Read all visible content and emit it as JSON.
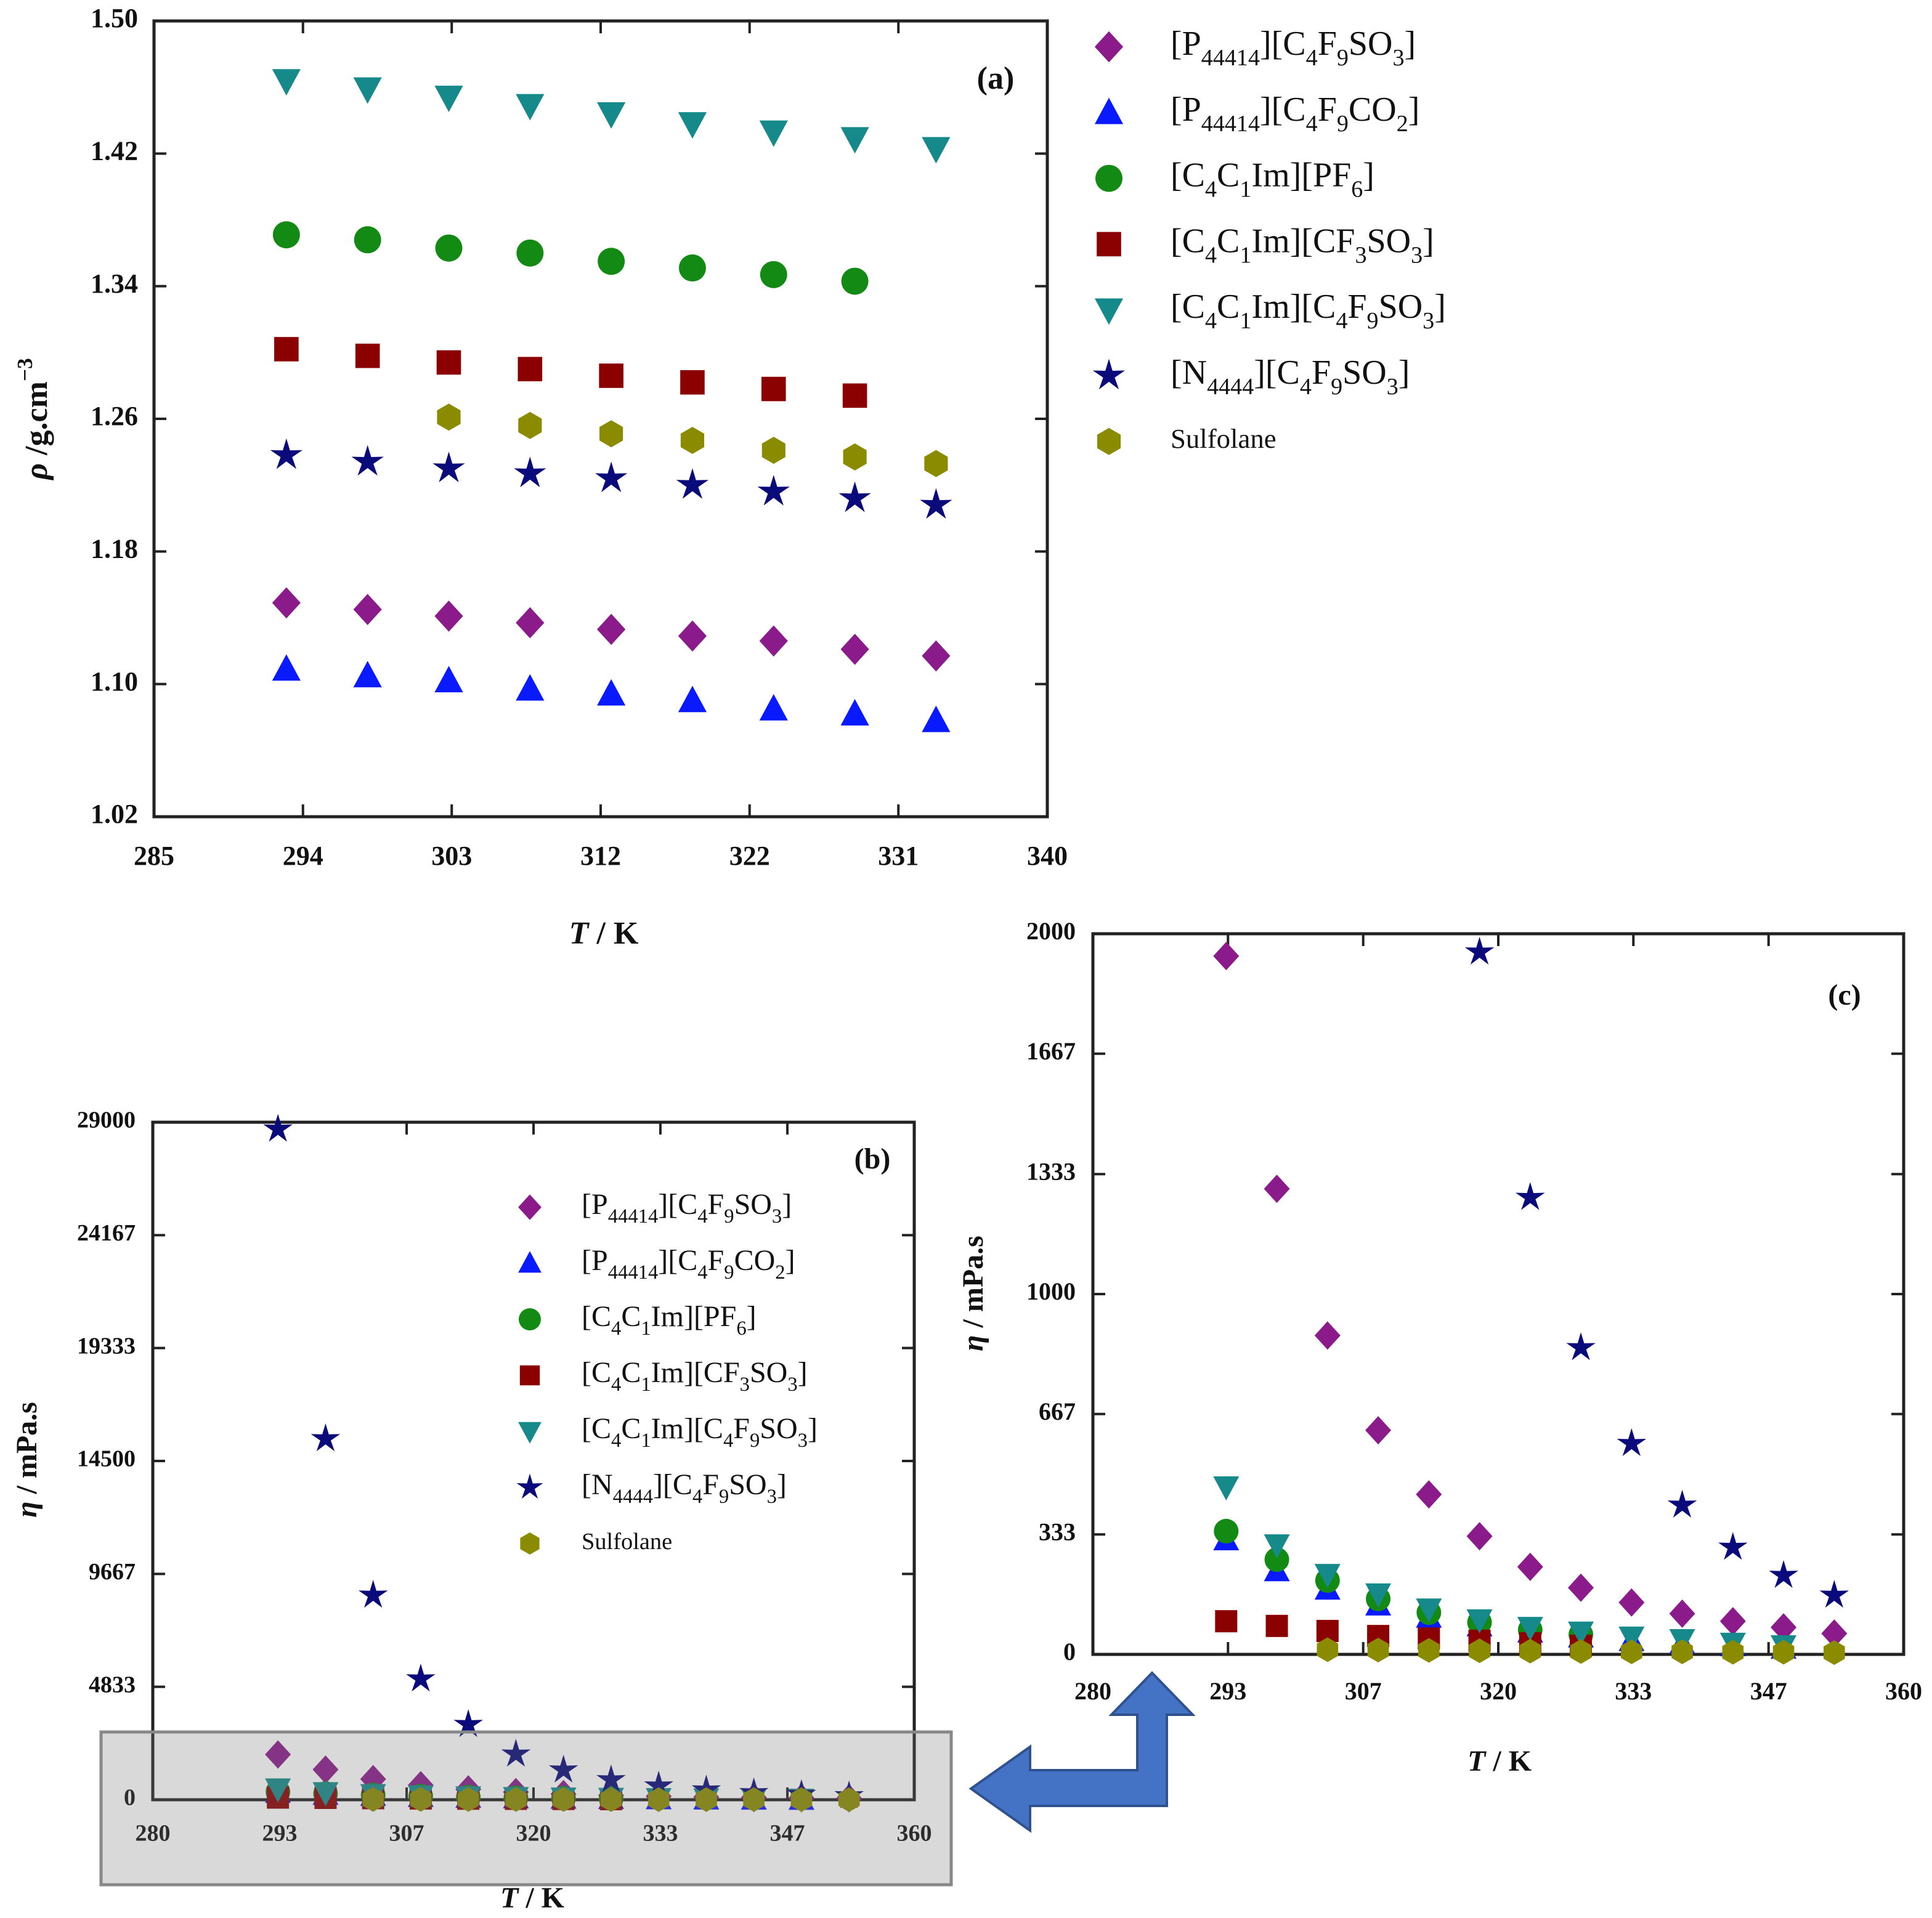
{
  "chart_data": [
    {
      "type": "scatter",
      "label": "(a)",
      "xlabel": "T / K",
      "ylabel": "ρ /g.cm−3",
      "x": [
        293.15,
        298.15,
        303.15,
        308.15,
        313.15,
        318.15,
        323.15,
        328.15,
        333.15
      ],
      "xlim": [
        285,
        340
      ],
      "xticks": [
        285,
        {
          "value": 294.17,
          "label": "294"
        },
        {
          "value": 303.33,
          "label": "303"
        },
        {
          "value": 312.5,
          "label": "312"
        },
        {
          "value": 321.67,
          "label": "322"
        },
        {
          "value": 330.83,
          "label": "331"
        },
        340
      ],
      "ylim": [
        1.02,
        1.5
      ],
      "yticks": [
        {
          "value": 1.02,
          "label": "1.02"
        },
        {
          "value": 1.1,
          "label": "1.10"
        },
        {
          "value": 1.18,
          "label": "1.18"
        },
        {
          "value": 1.26,
          "label": "1.26"
        },
        {
          "value": 1.34,
          "label": "1.34"
        },
        {
          "value": 1.42,
          "label": "1.42"
        },
        {
          "value": 1.5,
          "label": "1.50"
        }
      ],
      "legend": "outside right",
      "series": [
        {
          "name": "[P44414][C4F9SO3]",
          "color": "#8b1a8b",
          "marker": "diamond",
          "values": [
            1.149,
            1.145,
            1.141,
            1.137,
            1.133,
            1.129,
            1.126,
            1.121,
            1.117
          ]
        },
        {
          "name": "[P44414][C4F9CO2]",
          "color": "#0a1aff",
          "marker": "triangle",
          "values": [
            1.109,
            1.105,
            1.102,
            1.097,
            1.094,
            1.09,
            1.085,
            1.082,
            1.078
          ]
        },
        {
          "name": "[C4C1Im][PF6]",
          "color": "#138a13",
          "marker": "circle",
          "values": [
            1.371,
            1.368,
            1.363,
            1.36,
            1.355,
            1.351,
            1.347,
            1.343,
            null
          ]
        },
        {
          "name": "[C4C1Im][CF3SO3]",
          "color": "#8b0000",
          "marker": "square",
          "values": [
            1.302,
            1.298,
            1.294,
            1.29,
            1.286,
            1.282,
            1.278,
            1.274,
            null
          ]
        },
        {
          "name": "[C4C1Im][C4F9SO3]",
          "color": "#168a8a",
          "marker": "triangle-down",
          "values": [
            1.464,
            1.459,
            1.454,
            1.449,
            1.444,
            1.438,
            1.433,
            1.429,
            1.423
          ]
        },
        {
          "name": "[N4444][C4F9SO3]",
          "color": "#0a0a7a",
          "marker": "star",
          "values": [
            1.238,
            1.234,
            1.23,
            1.227,
            1.224,
            1.22,
            1.216,
            1.212,
            1.208
          ]
        },
        {
          "name": "Sulfolane",
          "color": "#8b8b00",
          "marker": "hexagon",
          "values": [
            null,
            null,
            1.261,
            1.256,
            1.251,
            1.247,
            1.241,
            1.237,
            1.233
          ]
        }
      ]
    },
    {
      "type": "scatter",
      "label": "(b)",
      "xlabel": "T / K",
      "ylabel": "η / mPa.s",
      "x": [
        293.15,
        298.15,
        303.15,
        308.15,
        313.15,
        318.15,
        323.15,
        328.15,
        333.15,
        338.15,
        343.15,
        348.15,
        353.15
      ],
      "xlim": [
        280,
        360
      ],
      "xticks": [
        280,
        {
          "value": 293.33,
          "label": "293"
        },
        {
          "value": 306.67,
          "label": "307"
        },
        320,
        {
          "value": 333.33,
          "label": "333"
        },
        {
          "value": 346.67,
          "label": "347"
        },
        360
      ],
      "ylim": [
        0,
        29000
      ],
      "yticks": [
        0,
        4833,
        9667,
        14500,
        19333,
        24167,
        29000
      ],
      "legend": "inside top right",
      "series": [
        {
          "name": "[P44414][C4F9SO3]",
          "color": "#8b1a8b",
          "marker": "diamond",
          "values": [
            1938,
            1292,
            885,
            622,
            444,
            328,
            243,
            185,
            144,
            113,
            92,
            75,
            58
          ]
        },
        {
          "name": "[P44414][C4F9CO2]",
          "color": "#0a1aff",
          "marker": "triangle",
          "values": [
            318,
            232,
            181,
            137,
            103,
            79,
            62,
            48,
            38,
            31,
            24,
            17,
            null
          ]
        },
        {
          "name": "[C4C1Im][PF6]",
          "color": "#138a13",
          "marker": "circle",
          "values": [
            342,
            263,
            205,
            154,
            116,
            89,
            68,
            55,
            null,
            null,
            null,
            null,
            null
          ]
        },
        {
          "name": "[C4C1Im][CF3SO3]",
          "color": "#8b0000",
          "marker": "square",
          "values": [
            92,
            79,
            65,
            51,
            44,
            38,
            31,
            24,
            null,
            null,
            null,
            null,
            null
          ]
        },
        {
          "name": "[C4C1Im][C4F9SO3]",
          "color": "#168a8a",
          "marker": "triangle-down",
          "values": [
            465,
            304,
            222,
            168,
            126,
            96,
            75,
            62,
            48,
            41,
            31,
            24,
            null
          ]
        },
        {
          "name": "[N4444][C4F9SO3]",
          "color": "#0a0a7a",
          "marker": "star",
          "values": [
            28700,
            15449,
            8753,
            5167,
            3216,
            1949,
            1268,
            851,
            585,
            414,
            297,
            219,
            164
          ]
        },
        {
          "name": "Sulfolane",
          "color": "#8b8b00",
          "marker": "hexagon",
          "values": [
            null,
            null,
            13,
            12,
            11,
            10,
            9,
            8,
            7,
            7,
            6,
            6,
            5
          ]
        }
      ]
    },
    {
      "type": "scatter",
      "label": "(c)",
      "xlabel": "T / K",
      "ylabel": "η / mPa.s",
      "x": [
        293.15,
        298.15,
        303.15,
        308.15,
        313.15,
        318.15,
        323.15,
        328.15,
        333.15,
        338.15,
        343.15,
        348.15,
        353.15
      ],
      "xlim": [
        280,
        360
      ],
      "xticks": [
        280,
        {
          "value": 293.33,
          "label": "293"
        },
        {
          "value": 306.67,
          "label": "307"
        },
        320,
        {
          "value": 333.33,
          "label": "333"
        },
        {
          "value": 346.67,
          "label": "347"
        },
        360
      ],
      "ylim": [
        0,
        2000
      ],
      "yticks": [
        0,
        333,
        667,
        1000,
        1333,
        1667,
        2000
      ],
      "series": [
        {
          "color": "#8b1a8b",
          "marker": "diamond",
          "values": [
            1938,
            1292,
            885,
            622,
            444,
            328,
            243,
            185,
            144,
            113,
            92,
            75,
            58
          ]
        },
        {
          "color": "#0a1aff",
          "marker": "triangle",
          "values": [
            318,
            232,
            181,
            137,
            103,
            79,
            62,
            48,
            38,
            31,
            24,
            17,
            null
          ]
        },
        {
          "color": "#138a13",
          "marker": "circle",
          "values": [
            342,
            263,
            205,
            154,
            116,
            89,
            68,
            55,
            null,
            null,
            null,
            null,
            null
          ]
        },
        {
          "color": "#8b0000",
          "marker": "square",
          "values": [
            92,
            79,
            65,
            51,
            44,
            38,
            31,
            24,
            null,
            null,
            null,
            null,
            null
          ]
        },
        {
          "color": "#168a8a",
          "marker": "triangle-down",
          "values": [
            465,
            304,
            222,
            168,
            126,
            96,
            75,
            62,
            48,
            41,
            31,
            24,
            null
          ]
        },
        {
          "color": "#0a0a7a",
          "marker": "star",
          "values": [
            null,
            null,
            null,
            null,
            null,
            1949,
            1268,
            851,
            585,
            414,
            297,
            219,
            164
          ]
        },
        {
          "color": "#8b8b00",
          "marker": "hexagon",
          "values": [
            null,
            null,
            13,
            12,
            11,
            10,
            9,
            8,
            7,
            7,
            6,
            6,
            5
          ]
        }
      ]
    }
  ]
}
